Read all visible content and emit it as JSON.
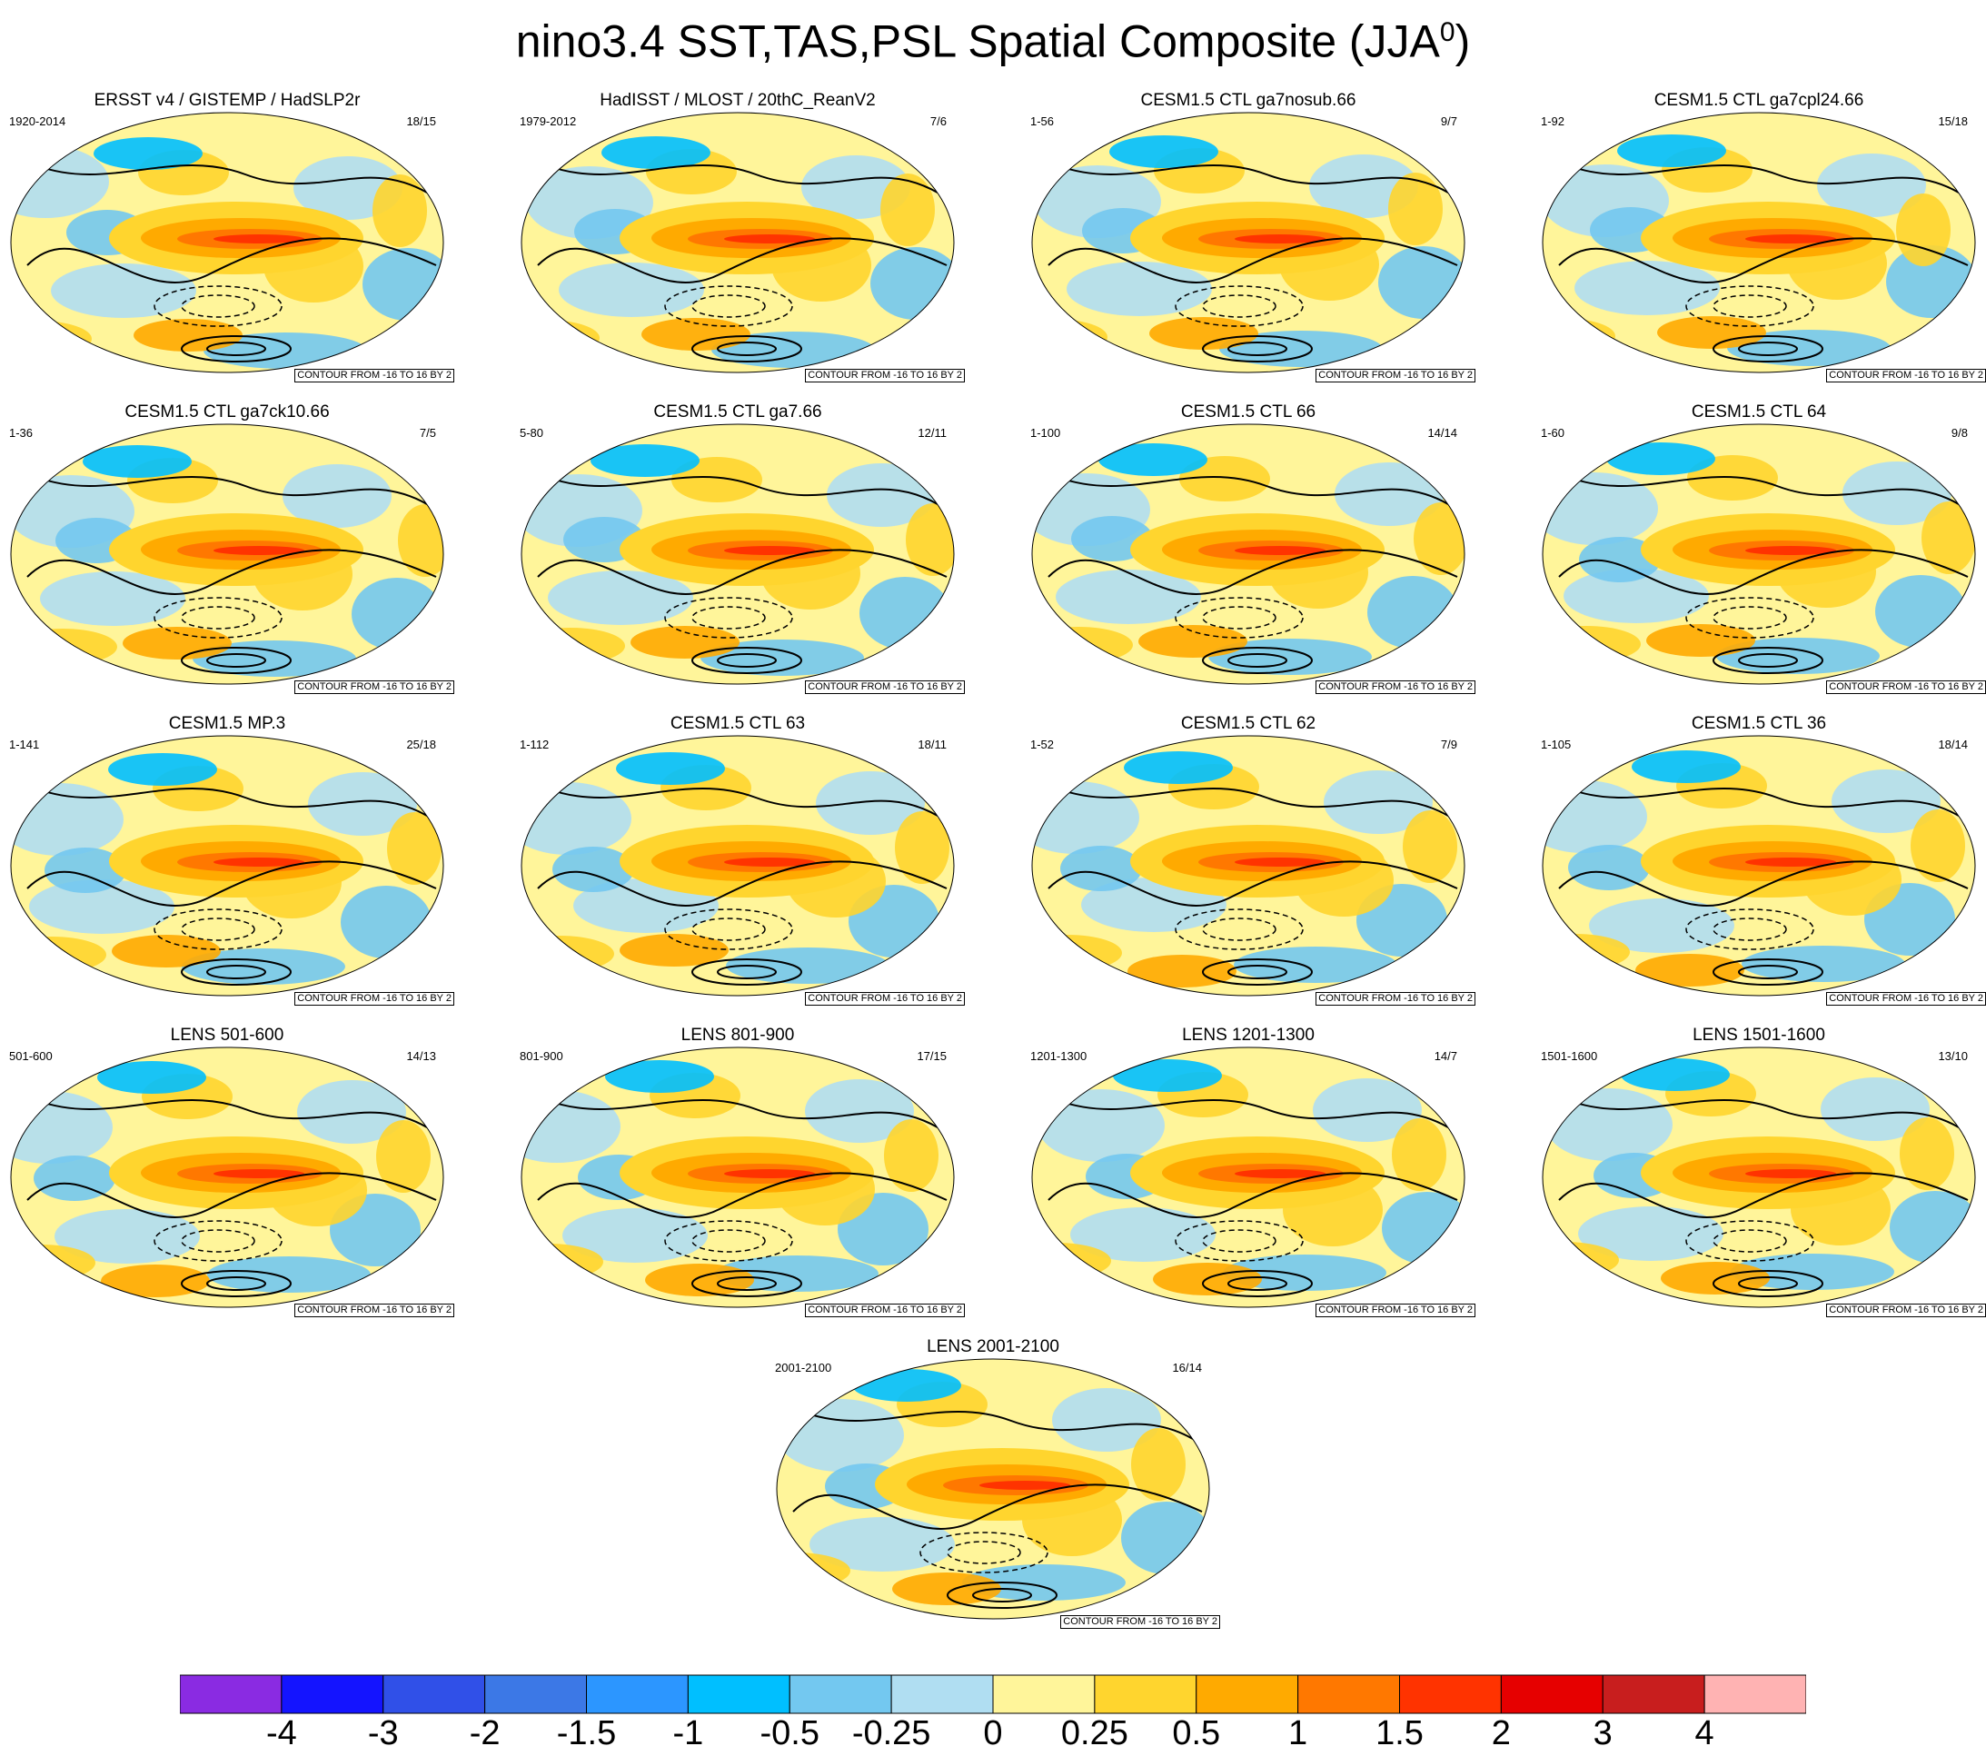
{
  "title": {
    "main": "nino3.4 SST,TAS,PSL Spatial Composite (JJA",
    "sup": "0",
    "close": ")"
  },
  "contour_note": "CONTOUR FROM -16 TO 16 BY 2",
  "panels": [
    {
      "title": "ERSST v4 / GISTEMP / HadSLP2r",
      "left": "1920-2014",
      "right": "18/15"
    },
    {
      "title": "HadISST / MLOST / 20thC_ReanV2",
      "left": "1979-2012",
      "right": "7/6"
    },
    {
      "title": "CESM1.5 CTL ga7nosub.66",
      "left": "1-56",
      "right": "9/7"
    },
    {
      "title": "CESM1.5 CTL ga7cpl24.66",
      "left": "1-92",
      "right": "15/18"
    },
    {
      "title": "CESM1.5 CTL ga7ck10.66",
      "left": "1-36",
      "right": "7/5"
    },
    {
      "title": "CESM1.5 CTL ga7.66",
      "left": "5-80",
      "right": "12/11"
    },
    {
      "title": "CESM1.5 CTL 66",
      "left": "1-100",
      "right": "14/14"
    },
    {
      "title": "CESM1.5 CTL 64",
      "left": "1-60",
      "right": "9/8"
    },
    {
      "title": "CESM1.5 MP.3",
      "left": "1-141",
      "right": "25/18"
    },
    {
      "title": "CESM1.5 CTL 63",
      "left": "1-112",
      "right": "18/11"
    },
    {
      "title": "CESM1.5 CTL 62",
      "left": "1-52",
      "right": "7/9"
    },
    {
      "title": "CESM1.5 CTL 36",
      "left": "1-105",
      "right": "18/14"
    },
    {
      "title": "LENS 501-600",
      "left": "501-600",
      "right": "14/13"
    },
    {
      "title": "LENS 801-900",
      "left": "801-900",
      "right": "17/15"
    },
    {
      "title": "LENS 1201-1300",
      "left": "1201-1300",
      "right": "14/7"
    },
    {
      "title": "LENS 1501-1600",
      "left": "1501-1600",
      "right": "13/10"
    },
    {
      "title": "LENS 2001-2100",
      "left": "2001-2100",
      "right": "16/14"
    }
  ],
  "colorbar": {
    "colors": [
      "#8a2be2",
      "#1414ff",
      "#3050e8",
      "#3c78e6",
      "#2c96ff",
      "#00bfff",
      "#73c8f0",
      "#b0def2",
      "#fff59a",
      "#ffd52e",
      "#ffaa00",
      "#ff7800",
      "#ff3300",
      "#e60000",
      "#c81e1e",
      "#ffb3b3"
    ],
    "labels": [
      "-4",
      "-3",
      "-2",
      "-1.5",
      "-1",
      "-0.5",
      "-0.25",
      "0",
      "0.25",
      "0.5",
      "1",
      "1.5",
      "2",
      "3",
      "4"
    ]
  },
  "chart_data": {
    "type": "heatmap",
    "title": "nino3.4 SST,TAS,PSL Spatial Composite (JJA0)",
    "projection": "Robinson global map, shaded SST/TAS anomaly with PSL contours",
    "contour_levels": {
      "from": -16,
      "to": 16,
      "by": 2
    },
    "color_levels": [
      -4,
      -3,
      -2,
      -1.5,
      -1,
      -0.5,
      -0.25,
      0,
      0.25,
      0.5,
      1,
      1.5,
      2,
      3,
      4
    ],
    "panel_count": 17
  }
}
